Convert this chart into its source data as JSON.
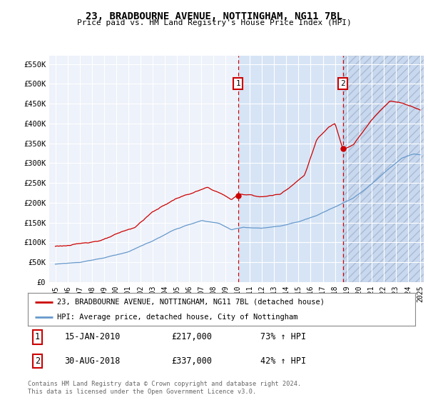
{
  "title": "23, BRADBOURNE AVENUE, NOTTINGHAM, NG11 7BL",
  "subtitle": "Price paid vs. HM Land Registry's House Price Index (HPI)",
  "legend_line1": "23, BRADBOURNE AVENUE, NOTTINGHAM, NG11 7BL (detached house)",
  "legend_line2": "HPI: Average price, detached house, City of Nottingham",
  "footnote": "Contains HM Land Registry data © Crown copyright and database right 2024.\nThis data is licensed under the Open Government Licence v3.0.",
  "transaction1_date": "15-JAN-2010",
  "transaction1_price": "£217,000",
  "transaction1_change": "73% ↑ HPI",
  "transaction2_date": "30-AUG-2018",
  "transaction2_price": "£337,000",
  "transaction2_change": "42% ↑ HPI",
  "red_color": "#cc0000",
  "blue_color": "#6699cc",
  "background_color": "#ffffff",
  "plot_bg_color": "#eef2fa",
  "shade1_color": "#d6e4f5",
  "hatch_color": "#c8d8ee",
  "grid_color": "#ffffff",
  "marker1_x": 2010.04,
  "marker2_x": 2018.66,
  "vline_color": "#cc0000",
  "ylim_max": 570000,
  "xlim_min": 1994.5,
  "xlim_max": 2025.3
}
